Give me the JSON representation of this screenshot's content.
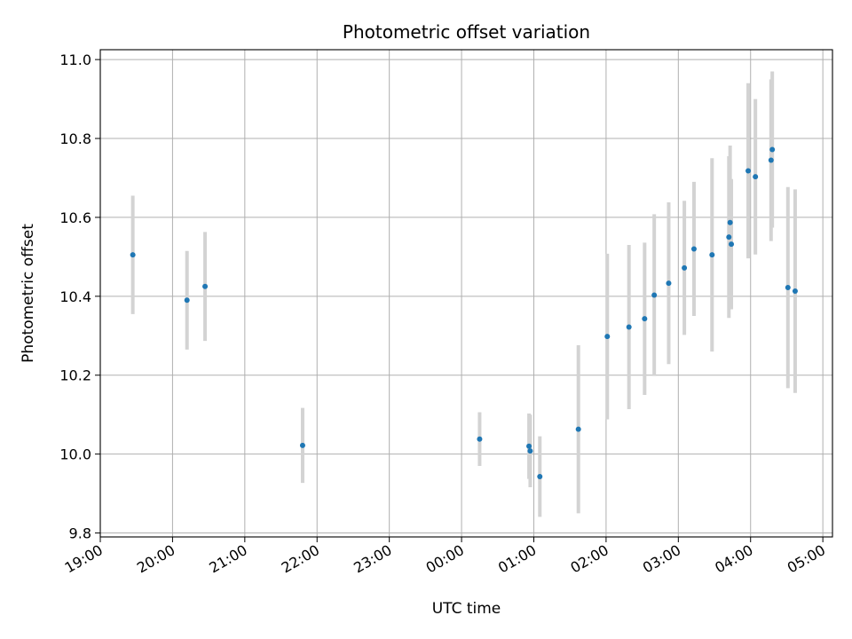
{
  "chart_data": {
    "type": "scatter",
    "title": "Photometric offset variation",
    "xlabel": "UTC time",
    "ylabel": "Photometric offset",
    "xlim": [
      "19:00",
      "05:08"
    ],
    "ylim": [
      9.79,
      11.025
    ],
    "grid": true,
    "x_tick_labels": [
      "19:00",
      "20:00",
      "21:00",
      "22:00",
      "23:00",
      "00:00",
      "01:00",
      "02:00",
      "03:00",
      "04:00",
      "05:00"
    ],
    "y_ticks": [
      9.8,
      10.0,
      10.2,
      10.4,
      10.6,
      10.8,
      11.0
    ],
    "y_tick_labels": [
      "9.8",
      "10.0",
      "10.2",
      "10.4",
      "10.6",
      "10.8",
      "11.0"
    ],
    "colors": {
      "point": "#1f77b4",
      "errorbar": "#d3d3d3",
      "grid": "#b0b0b0"
    },
    "points": [
      {
        "t": "19:27",
        "y": 10.505,
        "err": 0.15
      },
      {
        "t": "20:12",
        "y": 10.39,
        "err": 0.125
      },
      {
        "t": "20:27",
        "y": 10.425,
        "err": 0.138
      },
      {
        "t": "21:48",
        "y": 10.022,
        "err": 0.095
      },
      {
        "t": "00:15",
        "y": 10.038,
        "err": 0.068
      },
      {
        "t": "00:56",
        "y": 10.02,
        "err": 0.083
      },
      {
        "t": "00:57",
        "y": 10.008,
        "err": 0.092
      },
      {
        "t": "01:05",
        "y": 9.943,
        "err": 0.102
      },
      {
        "t": "01:37",
        "y": 10.063,
        "err": 0.213
      },
      {
        "t": "02:01",
        "y": 10.298,
        "err": 0.21
      },
      {
        "t": "02:19",
        "y": 10.322,
        "err": 0.208
      },
      {
        "t": "02:32",
        "y": 10.343,
        "err": 0.193
      },
      {
        "t": "02:40",
        "y": 10.403,
        "err": 0.205
      },
      {
        "t": "02:52",
        "y": 10.433,
        "err": 0.205
      },
      {
        "t": "03:05",
        "y": 10.472,
        "err": 0.17
      },
      {
        "t": "03:13",
        "y": 10.52,
        "err": 0.17
      },
      {
        "t": "03:28",
        "y": 10.505,
        "err": 0.245
      },
      {
        "t": "03:42",
        "y": 10.55,
        "err": 0.205
      },
      {
        "t": "03:43",
        "y": 10.587,
        "err": 0.195
      },
      {
        "t": "03:44",
        "y": 10.532,
        "err": 0.165
      },
      {
        "t": "03:58",
        "y": 10.718,
        "err": 0.222
      },
      {
        "t": "04:04",
        "y": 10.703,
        "err": 0.197
      },
      {
        "t": "04:17",
        "y": 10.745,
        "err": 0.205
      },
      {
        "t": "04:18",
        "y": 10.772,
        "err": 0.198
      },
      {
        "t": "04:31",
        "y": 10.422,
        "err": 0.255
      },
      {
        "t": "04:37",
        "y": 10.413,
        "err": 0.258
      }
    ]
  }
}
